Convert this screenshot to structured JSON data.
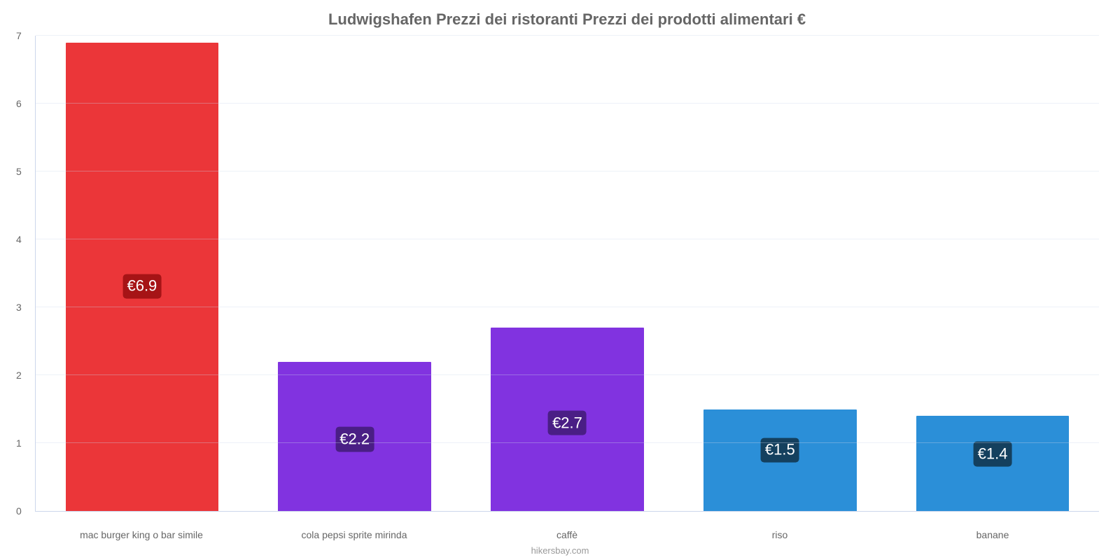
{
  "chart": {
    "type": "bar",
    "title": "Ludwigshafen Prezzi dei ristoranti Prezzi dei prodotti alimentari €",
    "title_fontsize": 22,
    "title_color": "#666666",
    "credit": "hikersbay.com",
    "credit_color": "#999999",
    "credit_fontsize": 13,
    "background_color": "#ffffff",
    "ymin": 0,
    "ymax": 7,
    "yticks": [
      0,
      1,
      2,
      3,
      4,
      5,
      6,
      7
    ],
    "ytick_fontsize": 14,
    "ytick_color": "#666666",
    "grid_color": "#ccd6eb",
    "axis_color": "#ccd6eb",
    "bar_width_pct": 72,
    "badge_fontsize": 22,
    "badge_radius": 5,
    "categories": [
      "mac burger king o bar simile",
      "cola pepsi sprite mirinda",
      "caffè",
      "riso",
      "banane"
    ],
    "values": [
      6.9,
      2.2,
      2.7,
      1.5,
      1.4
    ],
    "value_labels": [
      "€6.9",
      "€2.2",
      "€2.7",
      "€1.5",
      "€1.4"
    ],
    "bar_colors": [
      "#eb3639",
      "#8133e0",
      "#8133e0",
      "#2b8fd8",
      "#2b8fd8"
    ],
    "badge_colors": [
      "#a61416",
      "#4a1e85",
      "#4a1e85",
      "#14405e",
      "#14405e"
    ],
    "xlabel_fontsize": 14,
    "xlabel_color": "#666666"
  }
}
